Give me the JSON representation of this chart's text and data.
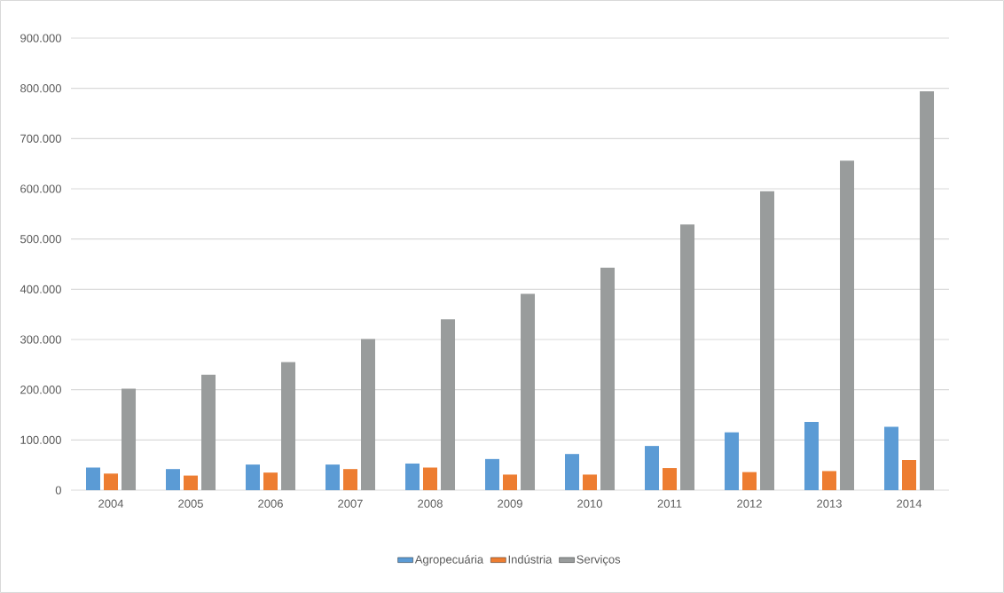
{
  "chart_data": {
    "type": "bar",
    "categories": [
      "2004",
      "2005",
      "2006",
      "2007",
      "2008",
      "2009",
      "2010",
      "2011",
      "2012",
      "2013",
      "2014"
    ],
    "series": [
      {
        "name": "Agropecuária",
        "color": "#5b9bd5",
        "values": [
          45000,
          42000,
          51000,
          51000,
          53000,
          62000,
          72000,
          88000,
          115000,
          136000,
          126000
        ]
      },
      {
        "name": "Indústria",
        "color": "#ed7d31",
        "values": [
          33000,
          29000,
          35000,
          42000,
          45000,
          31000,
          31000,
          44000,
          36000,
          38000,
          60000
        ]
      },
      {
        "name": "Serviços",
        "color": "#999c9c",
        "values": [
          202000,
          230000,
          255000,
          301000,
          340000,
          391000,
          443000,
          529000,
          595000,
          656000,
          794000
        ]
      }
    ],
    "ylim": [
      0,
      900000
    ],
    "yticks": [
      0,
      {
        "value": 100000,
        "label": "100.000"
      },
      {
        "value": 200000,
        "label": "200.000"
      },
      {
        "value": 300000,
        "label": "300.000"
      },
      {
        "value": 400000,
        "label": "400.000"
      },
      {
        "value": 500000,
        "label": "500.000"
      },
      {
        "value": 600000,
        "label": "600.000"
      },
      {
        "value": 700000,
        "label": "700.000"
      },
      {
        "value": 800000,
        "label": "800.000"
      },
      {
        "value": 900000,
        "label": "900.000"
      }
    ],
    "grid": "y",
    "legend": "bottom"
  }
}
